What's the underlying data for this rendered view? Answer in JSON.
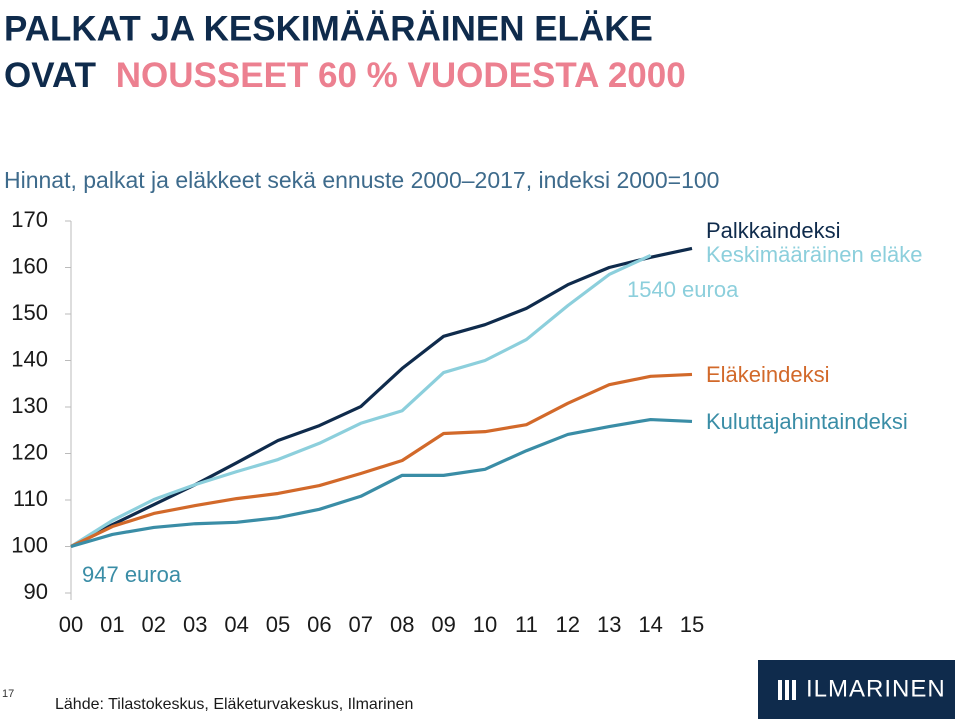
{
  "chart_data": {
    "type": "line",
    "title": "PALKAT JA KESKIMÄÄRÄINEN ELÄKE",
    "title_line2_start": "OVAT",
    "title_line2_highlight": "NOUSSEET 60 % VUODESTA 2000",
    "subtitle": "Hinnat, palkat ja eläkkeet sekä ennuste 2000–2017, indeksi 2000=100",
    "categories": [
      "00",
      "01",
      "02",
      "03",
      "04",
      "05",
      "06",
      "07",
      "08",
      "09",
      "10",
      "11",
      "12",
      "13",
      "14",
      "15"
    ],
    "series": [
      {
        "name": "Palkkaindeksi",
        "color": "#0f2b4c",
        "values": [
          100,
          104.7,
          109,
          113.3,
          118,
          122.8,
          126,
          130.1,
          138.3,
          145.2,
          147.7,
          151.2,
          156.3,
          160,
          162.2,
          164.1
        ]
      },
      {
        "name": "Keskimääräinen eläke",
        "color": "#8ccfdc",
        "values": [
          100,
          105.6,
          110.1,
          113.3,
          116.1,
          118.7,
          122.2,
          126.5,
          129.2,
          137.4,
          140,
          144.5,
          151.8,
          158.5,
          162.6,
          null
        ]
      },
      {
        "name": "Eläkeindeksi",
        "color": "#d2692a",
        "values": [
          100,
          104.3,
          107.1,
          108.8,
          110.3,
          111.4,
          113.1,
          115.7,
          118.5,
          124.3,
          124.7,
          126.2,
          130.8,
          134.8,
          136.6,
          137
        ]
      },
      {
        "name": "Kuluttajahintaindeksi",
        "color": "#3a8da6",
        "values": [
          100,
          102.6,
          104.1,
          104.9,
          105.2,
          106.2,
          108,
          110.8,
          115.3,
          115.3,
          116.6,
          120.6,
          124.1,
          125.8,
          127.3,
          126.9
        ]
      }
    ],
    "ylim": [
      90,
      170
    ],
    "yticks": [
      90,
      100,
      110,
      120,
      130,
      140,
      150,
      160,
      170
    ],
    "annotations": [
      "1540 euroa",
      "947 euroa"
    ],
    "source": "Lähde: Tilastokeskus, Eläketurvakeskus, Ilmarinen",
    "page_number": "17",
    "logo": "ILMARINEN"
  }
}
